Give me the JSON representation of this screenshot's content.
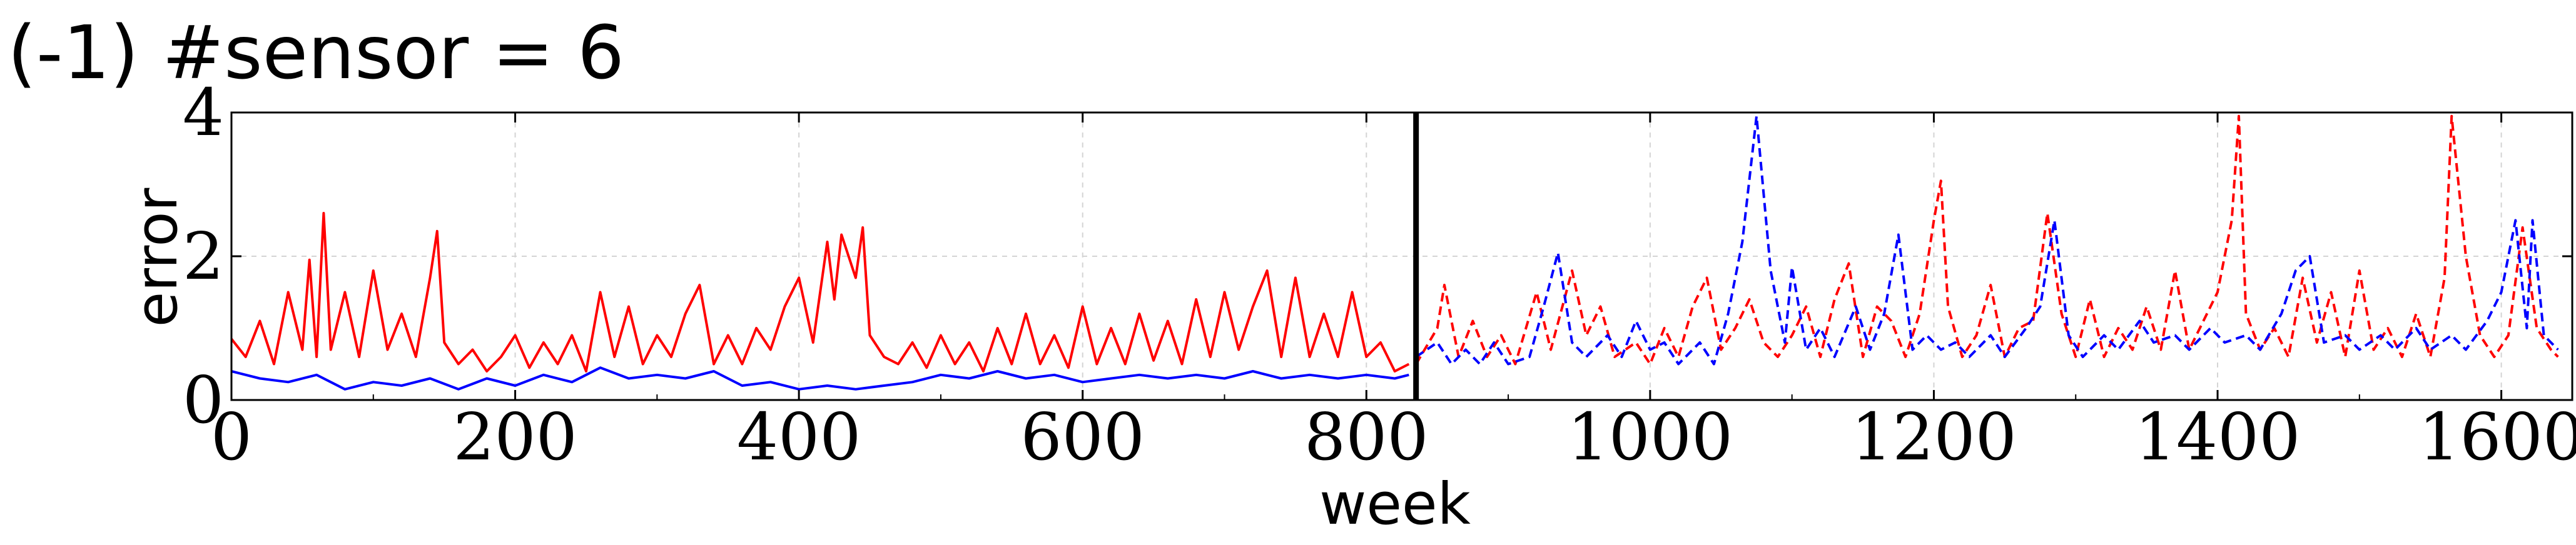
{
  "chart_data": {
    "type": "line",
    "title": "(-1) #sensor = 6",
    "xlabel": "week",
    "ylabel": "error",
    "xlim": [
      0,
      1650
    ],
    "ylim": [
      0,
      4
    ],
    "x_ticks": [
      0,
      200,
      400,
      600,
      800,
      1000,
      1200,
      1400,
      1600
    ],
    "y_ticks": [
      0,
      2,
      4
    ],
    "grid": true,
    "legend": "none",
    "annotations": [
      {
        "type": "vertical_line",
        "x": 835,
        "color": "#000000"
      }
    ],
    "series": [
      {
        "style": "solid",
        "color": "#ff0000",
        "points": [
          [
            0,
            0.85
          ],
          [
            10,
            0.6
          ],
          [
            20,
            1.1
          ],
          [
            30,
            0.5
          ],
          [
            40,
            1.5
          ],
          [
            50,
            0.7
          ],
          [
            55,
            1.95
          ],
          [
            60,
            0.6
          ],
          [
            65,
            2.6
          ],
          [
            70,
            0.7
          ],
          [
            80,
            1.5
          ],
          [
            90,
            0.6
          ],
          [
            100,
            1.8
          ],
          [
            110,
            0.7
          ],
          [
            120,
            1.2
          ],
          [
            130,
            0.6
          ],
          [
            140,
            1.7
          ],
          [
            145,
            2.35
          ],
          [
            150,
            0.8
          ],
          [
            160,
            0.5
          ],
          [
            170,
            0.7
          ],
          [
            180,
            0.4
          ],
          [
            190,
            0.6
          ],
          [
            200,
            0.9
          ],
          [
            210,
            0.45
          ],
          [
            220,
            0.8
          ],
          [
            230,
            0.5
          ],
          [
            240,
            0.9
          ],
          [
            250,
            0.4
          ],
          [
            260,
            1.5
          ],
          [
            270,
            0.6
          ],
          [
            280,
            1.3
          ],
          [
            290,
            0.5
          ],
          [
            300,
            0.9
          ],
          [
            310,
            0.6
          ],
          [
            320,
            1.2
          ],
          [
            330,
            1.6
          ],
          [
            340,
            0.5
          ],
          [
            350,
            0.9
          ],
          [
            360,
            0.5
          ],
          [
            370,
            1.0
          ],
          [
            380,
            0.7
          ],
          [
            390,
            1.3
          ],
          [
            400,
            1.7
          ],
          [
            410,
            0.8
          ],
          [
            420,
            2.2
          ],
          [
            425,
            1.4
          ],
          [
            430,
            2.3
          ],
          [
            440,
            1.7
          ],
          [
            445,
            2.4
          ],
          [
            450,
            0.9
          ],
          [
            460,
            0.6
          ],
          [
            470,
            0.5
          ],
          [
            480,
            0.8
          ],
          [
            490,
            0.45
          ],
          [
            500,
            0.9
          ],
          [
            510,
            0.5
          ],
          [
            520,
            0.8
          ],
          [
            530,
            0.4
          ],
          [
            540,
            1.0
          ],
          [
            550,
            0.5
          ],
          [
            560,
            1.2
          ],
          [
            570,
            0.5
          ],
          [
            580,
            0.9
          ],
          [
            590,
            0.45
          ],
          [
            600,
            1.3
          ],
          [
            610,
            0.5
          ],
          [
            620,
            1.0
          ],
          [
            630,
            0.5
          ],
          [
            640,
            1.2
          ],
          [
            650,
            0.55
          ],
          [
            660,
            1.1
          ],
          [
            670,
            0.5
          ],
          [
            680,
            1.4
          ],
          [
            690,
            0.6
          ],
          [
            700,
            1.5
          ],
          [
            710,
            0.7
          ],
          [
            720,
            1.3
          ],
          [
            730,
            1.8
          ],
          [
            740,
            0.6
          ],
          [
            750,
            1.7
          ],
          [
            760,
            0.6
          ],
          [
            770,
            1.2
          ],
          [
            780,
            0.6
          ],
          [
            790,
            1.5
          ],
          [
            800,
            0.6
          ],
          [
            810,
            0.8
          ],
          [
            820,
            0.4
          ],
          [
            830,
            0.5
          ]
        ]
      },
      {
        "style": "solid",
        "color": "#0000ff",
        "points": [
          [
            0,
            0.4
          ],
          [
            20,
            0.3
          ],
          [
            40,
            0.25
          ],
          [
            60,
            0.35
          ],
          [
            80,
            0.15
          ],
          [
            100,
            0.25
          ],
          [
            120,
            0.2
          ],
          [
            140,
            0.3
          ],
          [
            160,
            0.15
          ],
          [
            180,
            0.3
          ],
          [
            200,
            0.2
          ],
          [
            220,
            0.35
          ],
          [
            240,
            0.25
          ],
          [
            260,
            0.45
          ],
          [
            280,
            0.3
          ],
          [
            300,
            0.35
          ],
          [
            320,
            0.3
          ],
          [
            340,
            0.4
          ],
          [
            360,
            0.2
          ],
          [
            380,
            0.25
          ],
          [
            400,
            0.15
          ],
          [
            420,
            0.2
          ],
          [
            440,
            0.15
          ],
          [
            460,
            0.2
          ],
          [
            480,
            0.25
          ],
          [
            500,
            0.35
          ],
          [
            520,
            0.3
          ],
          [
            540,
            0.4
          ],
          [
            560,
            0.3
          ],
          [
            580,
            0.35
          ],
          [
            600,
            0.25
          ],
          [
            620,
            0.3
          ],
          [
            640,
            0.35
          ],
          [
            660,
            0.3
          ],
          [
            680,
            0.35
          ],
          [
            700,
            0.3
          ],
          [
            720,
            0.4
          ],
          [
            740,
            0.3
          ],
          [
            760,
            0.35
          ],
          [
            780,
            0.3
          ],
          [
            800,
            0.35
          ],
          [
            820,
            0.3
          ],
          [
            830,
            0.35
          ]
        ]
      },
      {
        "style": "dashed",
        "color": "#ff0000",
        "points": [
          [
            835,
            0.5
          ],
          [
            850,
            1.0
          ],
          [
            855,
            1.6
          ],
          [
            865,
            0.6
          ],
          [
            875,
            1.1
          ],
          [
            885,
            0.6
          ],
          [
            895,
            0.9
          ],
          [
            905,
            0.5
          ],
          [
            920,
            1.5
          ],
          [
            930,
            0.7
          ],
          [
            945,
            1.8
          ],
          [
            955,
            0.9
          ],
          [
            965,
            1.3
          ],
          [
            975,
            0.6
          ],
          [
            990,
            0.8
          ],
          [
            1000,
            0.5
          ],
          [
            1010,
            1.0
          ],
          [
            1020,
            0.6
          ],
          [
            1030,
            1.3
          ],
          [
            1040,
            1.7
          ],
          [
            1050,
            0.7
          ],
          [
            1060,
            1.0
          ],
          [
            1070,
            1.4
          ],
          [
            1080,
            0.8
          ],
          [
            1090,
            0.6
          ],
          [
            1100,
            0.9
          ],
          [
            1110,
            1.3
          ],
          [
            1120,
            0.6
          ],
          [
            1130,
            1.4
          ],
          [
            1140,
            1.9
          ],
          [
            1150,
            0.6
          ],
          [
            1160,
            1.3
          ],
          [
            1170,
            1.1
          ],
          [
            1180,
            0.6
          ],
          [
            1190,
            1.2
          ],
          [
            1200,
            2.5
          ],
          [
            1205,
            3.05
          ],
          [
            1210,
            1.3
          ],
          [
            1220,
            0.6
          ],
          [
            1230,
            0.9
          ],
          [
            1240,
            1.6
          ],
          [
            1250,
            0.6
          ],
          [
            1260,
            1.0
          ],
          [
            1270,
            1.1
          ],
          [
            1280,
            2.6
          ],
          [
            1290,
            1.2
          ],
          [
            1300,
            0.6
          ],
          [
            1310,
            1.4
          ],
          [
            1320,
            0.6
          ],
          [
            1330,
            1.0
          ],
          [
            1340,
            0.7
          ],
          [
            1350,
            1.3
          ],
          [
            1360,
            0.7
          ],
          [
            1370,
            1.8
          ],
          [
            1380,
            0.7
          ],
          [
            1390,
            1.1
          ],
          [
            1400,
            1.5
          ],
          [
            1410,
            2.5
          ],
          [
            1415,
            3.95
          ],
          [
            1420,
            1.2
          ],
          [
            1430,
            0.7
          ],
          [
            1440,
            1.0
          ],
          [
            1450,
            0.6
          ],
          [
            1460,
            1.7
          ],
          [
            1470,
            0.8
          ],
          [
            1480,
            1.5
          ],
          [
            1490,
            0.6
          ],
          [
            1500,
            1.8
          ],
          [
            1510,
            0.7
          ],
          [
            1520,
            1.0
          ],
          [
            1530,
            0.6
          ],
          [
            1540,
            1.2
          ],
          [
            1550,
            0.6
          ],
          [
            1560,
            1.7
          ],
          [
            1565,
            3.95
          ],
          [
            1575,
            2.0
          ],
          [
            1585,
            0.9
          ],
          [
            1595,
            0.6
          ],
          [
            1605,
            0.9
          ],
          [
            1615,
            2.4
          ],
          [
            1625,
            1.0
          ],
          [
            1635,
            0.7
          ],
          [
            1640,
            0.6
          ]
        ]
      },
      {
        "style": "dashed",
        "color": "#0000ff",
        "points": [
          [
            835,
            0.6
          ],
          [
            850,
            0.8
          ],
          [
            860,
            0.5
          ],
          [
            870,
            0.7
          ],
          [
            880,
            0.5
          ],
          [
            890,
            0.8
          ],
          [
            900,
            0.5
          ],
          [
            915,
            0.6
          ],
          [
            925,
            1.3
          ],
          [
            935,
            2.05
          ],
          [
            945,
            0.8
          ],
          [
            955,
            0.6
          ],
          [
            970,
            0.9
          ],
          [
            980,
            0.6
          ],
          [
            990,
            1.1
          ],
          [
            1000,
            0.7
          ],
          [
            1010,
            0.8
          ],
          [
            1020,
            0.5
          ],
          [
            1035,
            0.8
          ],
          [
            1045,
            0.5
          ],
          [
            1055,
            1.2
          ],
          [
            1065,
            2.2
          ],
          [
            1075,
            3.95
          ],
          [
            1085,
            1.8
          ],
          [
            1095,
            0.8
          ],
          [
            1100,
            1.85
          ],
          [
            1110,
            0.7
          ],
          [
            1120,
            1.0
          ],
          [
            1130,
            0.6
          ],
          [
            1145,
            1.3
          ],
          [
            1155,
            0.7
          ],
          [
            1165,
            1.2
          ],
          [
            1175,
            2.3
          ],
          [
            1185,
            0.7
          ],
          [
            1195,
            0.9
          ],
          [
            1205,
            0.7
          ],
          [
            1215,
            0.8
          ],
          [
            1225,
            0.6
          ],
          [
            1240,
            0.9
          ],
          [
            1250,
            0.6
          ],
          [
            1265,
            1.0
          ],
          [
            1275,
            1.3
          ],
          [
            1285,
            2.5
          ],
          [
            1295,
            0.9
          ],
          [
            1305,
            0.6
          ],
          [
            1320,
            0.9
          ],
          [
            1330,
            0.7
          ],
          [
            1345,
            1.1
          ],
          [
            1355,
            0.8
          ],
          [
            1370,
            0.9
          ],
          [
            1380,
            0.7
          ],
          [
            1395,
            1.0
          ],
          [
            1405,
            0.8
          ],
          [
            1420,
            0.9
          ],
          [
            1430,
            0.7
          ],
          [
            1445,
            1.2
          ],
          [
            1455,
            1.8
          ],
          [
            1465,
            2.0
          ],
          [
            1475,
            0.8
          ],
          [
            1490,
            0.9
          ],
          [
            1500,
            0.7
          ],
          [
            1515,
            0.9
          ],
          [
            1525,
            0.7
          ],
          [
            1540,
            1.0
          ],
          [
            1550,
            0.7
          ],
          [
            1565,
            0.9
          ],
          [
            1575,
            0.7
          ],
          [
            1590,
            1.1
          ],
          [
            1600,
            1.5
          ],
          [
            1610,
            2.5
          ],
          [
            1618,
            1.0
          ],
          [
            1622,
            2.5
          ],
          [
            1630,
            0.9
          ],
          [
            1640,
            0.7
          ]
        ]
      }
    ]
  }
}
